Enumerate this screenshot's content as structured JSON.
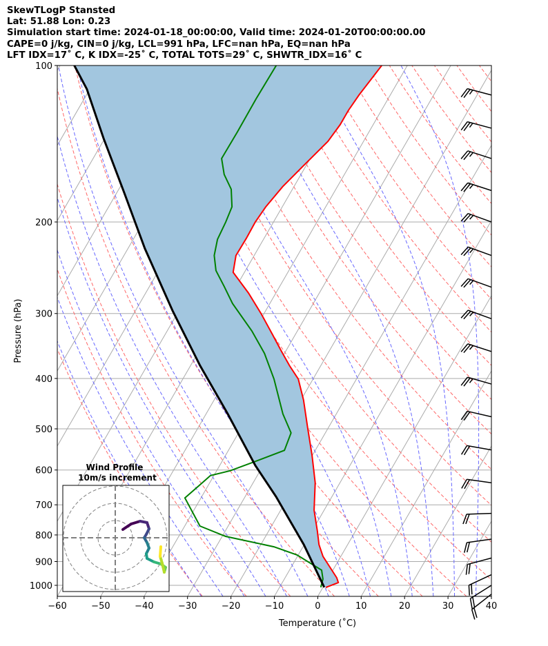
{
  "chart_data": {
    "type": "skewt",
    "title_lines": [
      "SkewTLogP Stansted",
      "Lat: 51.88   Lon: 0.23",
      "Simulation start time: 2024-01-18_00:00:00, Valid time: 2024-01-20T00:00:00.00",
      "CAPE=0 j/kg, CIN=0 j/kg, LCL=991 hPa, LFC=nan hPa, EQ=nan hPa",
      "LFT IDX=17˚ C, K IDX=-25˚ C, TOTAL TOTS=29˚ C, SHWTR_IDX=16˚ C"
    ],
    "xlabel": "Temperature (˚C)",
    "ylabel": "Pressure (hPa)",
    "xlim": [
      -60,
      40
    ],
    "ylim": [
      1050,
      100
    ],
    "xticks": [
      -60,
      -50,
      -40,
      -30,
      -20,
      -10,
      0,
      10,
      20,
      30,
      40
    ],
    "yticks": [
      100,
      200,
      300,
      400,
      500,
      600,
      700,
      800,
      900,
      1000
    ],
    "colors": {
      "temperature": "#ff0000",
      "dewpoint": "#008000",
      "parcel": "#000000",
      "shade": "#a2c6df",
      "dry_adiabat": "#ff6666",
      "moist_adiabat": "#6666ff",
      "isotherm": "#aaaaaa"
    },
    "temperature": [
      [
        1009,
        0.7
      ],
      [
        988,
        2.9
      ],
      [
        967,
        1.9
      ],
      [
        880,
        -4.1
      ],
      [
        835,
        -6.6
      ],
      [
        786,
        -8.8
      ],
      [
        717,
        -12.3
      ],
      [
        635,
        -15.7
      ],
      [
        562,
        -20.1
      ],
      [
        497,
        -24.8
      ],
      [
        440,
        -29.4
      ],
      [
        401,
        -33.4
      ],
      [
        378,
        -37.2
      ],
      [
        355,
        -40.9
      ],
      [
        329,
        -45.3
      ],
      [
        300,
        -50.7
      ],
      [
        274,
        -56.3
      ],
      [
        250,
        -62.6
      ],
      [
        232,
        -64.2
      ],
      [
        215,
        -64.1
      ],
      [
        200,
        -64.2
      ],
      [
        187,
        -63.8
      ],
      [
        171,
        -62.6
      ],
      [
        156,
        -60.6
      ],
      [
        140,
        -58.2
      ],
      [
        130,
        -57.6
      ],
      [
        122,
        -57.6
      ],
      [
        114,
        -57.2
      ],
      [
        100,
        -55.9
      ]
    ],
    "dewpoint": [
      [
        1009,
        -0.5
      ],
      [
        973,
        -1.1
      ],
      [
        935,
        -2.6
      ],
      [
        874,
        -10.3
      ],
      [
        843,
        -16.7
      ],
      [
        805,
        -29.2
      ],
      [
        769,
        -36.5
      ],
      [
        679,
        -43.7
      ],
      [
        635,
        -41.7
      ],
      [
        615,
        -40.8
      ],
      [
        602,
        -36.9
      ],
      [
        579,
        -32.6
      ],
      [
        550,
        -27.1
      ],
      [
        509,
        -27.9
      ],
      [
        468,
        -32.3
      ],
      [
        401,
        -39
      ],
      [
        358,
        -44.6
      ],
      [
        324,
        -50.5
      ],
      [
        287,
        -58.6
      ],
      [
        266,
        -62.8
      ],
      [
        248,
        -66.8
      ],
      [
        232,
        -69.2
      ],
      [
        216,
        -70.6
      ],
      [
        200,
        -71
      ],
      [
        187,
        -71.6
      ],
      [
        173,
        -74.1
      ],
      [
        162,
        -77.7
      ],
      [
        151,
        -80.4
      ],
      [
        134,
        -80.3
      ],
      [
        116,
        -80.4
      ],
      [
        100,
        -80.2
      ]
    ],
    "parcel": [
      [
        1009,
        0.3
      ],
      [
        835,
        -10.1
      ],
      [
        675,
        -22.9
      ],
      [
        588,
        -31.8
      ],
      [
        468,
        -45
      ],
      [
        378,
        -57.8
      ],
      [
        296,
        -71.5
      ],
      [
        225,
        -86.1
      ],
      [
        176,
        -98.2
      ],
      [
        138,
        -110.3
      ],
      [
        111,
        -120.7
      ],
      [
        100,
        -126.7
      ]
    ],
    "wind_barbs": [
      {
        "p": 114,
        "dir": 285,
        "speed_kt": 25
      },
      {
        "p": 132,
        "dir": 285,
        "speed_kt": 25
      },
      {
        "p": 151,
        "dir": 288,
        "speed_kt": 25
      },
      {
        "p": 174,
        "dir": 288,
        "speed_kt": 25
      },
      {
        "p": 200,
        "dir": 290,
        "speed_kt": 25
      },
      {
        "p": 232,
        "dir": 290,
        "speed_kt": 25
      },
      {
        "p": 267,
        "dir": 290,
        "speed_kt": 25
      },
      {
        "p": 307,
        "dir": 290,
        "speed_kt": 25
      },
      {
        "p": 355,
        "dir": 288,
        "speed_kt": 25
      },
      {
        "p": 410,
        "dir": 286,
        "speed_kt": 25
      },
      {
        "p": 474,
        "dir": 283,
        "speed_kt": 20
      },
      {
        "p": 549,
        "dir": 280,
        "speed_kt": 20
      },
      {
        "p": 635,
        "dir": 278,
        "speed_kt": 20
      },
      {
        "p": 727,
        "dir": 268,
        "speed_kt": 20
      },
      {
        "p": 815,
        "dir": 262,
        "speed_kt": 20
      },
      {
        "p": 886,
        "dir": 255,
        "speed_kt": 20
      },
      {
        "p": 954,
        "dir": 245,
        "speed_kt": 20
      },
      {
        "p": 1000,
        "dir": 238,
        "speed_kt": 20
      },
      {
        "p": 1040,
        "dir": 232,
        "speed_kt": 20
      }
    ],
    "hodograph": {
      "title": "Wind Profile",
      "subtitle": "10m/s increment",
      "ring_step_ms": 10,
      "rings": 3,
      "uv_ms": [
        [
          4.4,
          4.8
        ],
        [
          9.2,
          8
        ],
        [
          14.4,
          9.6
        ],
        [
          18.4,
          8.8
        ],
        [
          19.6,
          5.2
        ],
        [
          18,
          2
        ],
        [
          16.8,
          0
        ],
        [
          18.4,
          -2.8
        ],
        [
          19.6,
          -6
        ],
        [
          18,
          -9.2
        ],
        [
          18.4,
          -12
        ],
        [
          22.4,
          -14
        ],
        [
          26.4,
          -15.2
        ],
        [
          29.2,
          -17.2
        ],
        [
          28.4,
          -20
        ],
        [
          27.2,
          -14.8
        ],
        [
          26,
          -10.8
        ],
        [
          26.4,
          -5.2
        ]
      ]
    }
  }
}
